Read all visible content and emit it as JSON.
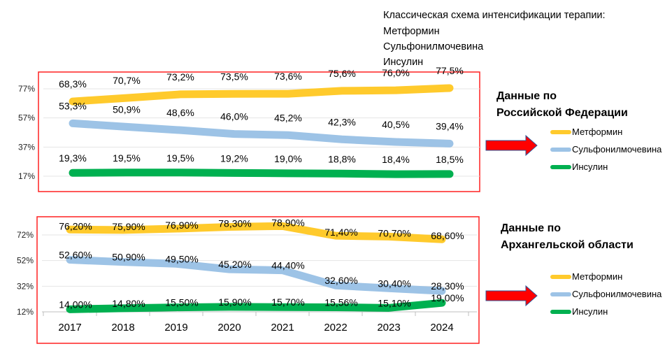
{
  "header": {
    "title": "Классическая схема интенсификации терапии:",
    "items": [
      "Метформин",
      "Сульфонилмочевина",
      "Инсулин"
    ]
  },
  "colors": {
    "metformin": "#FFCA2C",
    "sulfonylurea": "#9DC3E6",
    "insulin": "#00B050",
    "frame": "#FF2020",
    "arrow": "#FF0000",
    "arrow_border": "#2F5597"
  },
  "chart_data": [
    {
      "type": "line",
      "title_lines": [
        "Данные по",
        "Российской Федерации"
      ],
      "x": [
        "2017",
        "2018",
        "2019",
        "2020",
        "2021",
        "2022",
        "2023",
        "2024"
      ],
      "show_x_labels": false,
      "yticks": [
        "17%",
        "37%",
        "57%",
        "77%"
      ],
      "ytick_values": [
        17,
        37,
        57,
        77
      ],
      "ylim": [
        17,
        77
      ],
      "legend": [
        "Метформин",
        "Сульфонилмочевина",
        "Инсулин"
      ],
      "legend_placement": "right",
      "series": [
        {
          "name": "Метформин",
          "color": "#FFCA2C",
          "values": [
            68.3,
            70.7,
            73.2,
            73.5,
            73.6,
            75.6,
            76.0,
            77.5
          ],
          "labels": [
            "68,3%",
            "70,7%",
            "73,2%",
            "73,5%",
            "73,6%",
            "75,6%",
            "76,0%",
            "77,5%"
          ]
        },
        {
          "name": "Сульфонилмочевина",
          "color": "#9DC3E6",
          "values": [
            53.3,
            50.9,
            48.6,
            46.0,
            45.2,
            42.3,
            40.5,
            39.4
          ],
          "labels": [
            "53,3%",
            "50,9%",
            "48,6%",
            "46,0%",
            "45,2%",
            "42,3%",
            "40,5%",
            "39,4%"
          ]
        },
        {
          "name": "Инсулин",
          "color": "#00B050",
          "values": [
            19.3,
            19.5,
            19.5,
            19.2,
            19.0,
            18.8,
            18.4,
            18.5
          ],
          "labels": [
            "19,3%",
            "19,5%",
            "19,5%",
            "19,2%",
            "19,0%",
            "18,8%",
            "18,4%",
            "18,5%"
          ]
        }
      ]
    },
    {
      "type": "line",
      "title_lines": [
        "Данные по",
        "Архангельской области"
      ],
      "x": [
        "2017",
        "2018",
        "2019",
        "2020",
        "2021",
        "2022",
        "2023",
        "2024"
      ],
      "show_x_labels": true,
      "yticks": [
        "12%",
        "32%",
        "52%",
        "72%"
      ],
      "ytick_values": [
        12,
        32,
        52,
        72
      ],
      "ylim": [
        12,
        72
      ],
      "legend": [
        "Метформин",
        "Сульфонилмочевина",
        "Инсулин"
      ],
      "legend_placement": "right",
      "series": [
        {
          "name": "Метформин",
          "color": "#FFCA2C",
          "values": [
            76.2,
            75.9,
            76.9,
            78.3,
            78.9,
            71.4,
            70.7,
            68.6
          ],
          "labels": [
            "76,20%",
            "75,90%",
            "76,90%",
            "78,30%",
            "78,90%",
            "71,40%",
            "70,70%",
            "68,60%"
          ]
        },
        {
          "name": "Сульфонилмочевина",
          "color": "#9DC3E6",
          "values": [
            52.6,
            50.9,
            49.5,
            45.2,
            44.4,
            32.6,
            30.4,
            28.3
          ],
          "labels": [
            "52,60%",
            "50,90%",
            "49,50%",
            "45,20%",
            "44,40%",
            "32,60%",
            "30,40%",
            "28,30%"
          ]
        },
        {
          "name": "Инсулин",
          "color": "#00B050",
          "values": [
            14.0,
            14.8,
            15.5,
            15.9,
            15.7,
            15.56,
            15.1,
            19.0
          ],
          "labels": [
            "14,00%",
            "14,80%",
            "15,50%",
            "15,90%",
            "15,70%",
            "15,56%",
            "15,10%",
            "19,00%"
          ]
        }
      ]
    }
  ]
}
